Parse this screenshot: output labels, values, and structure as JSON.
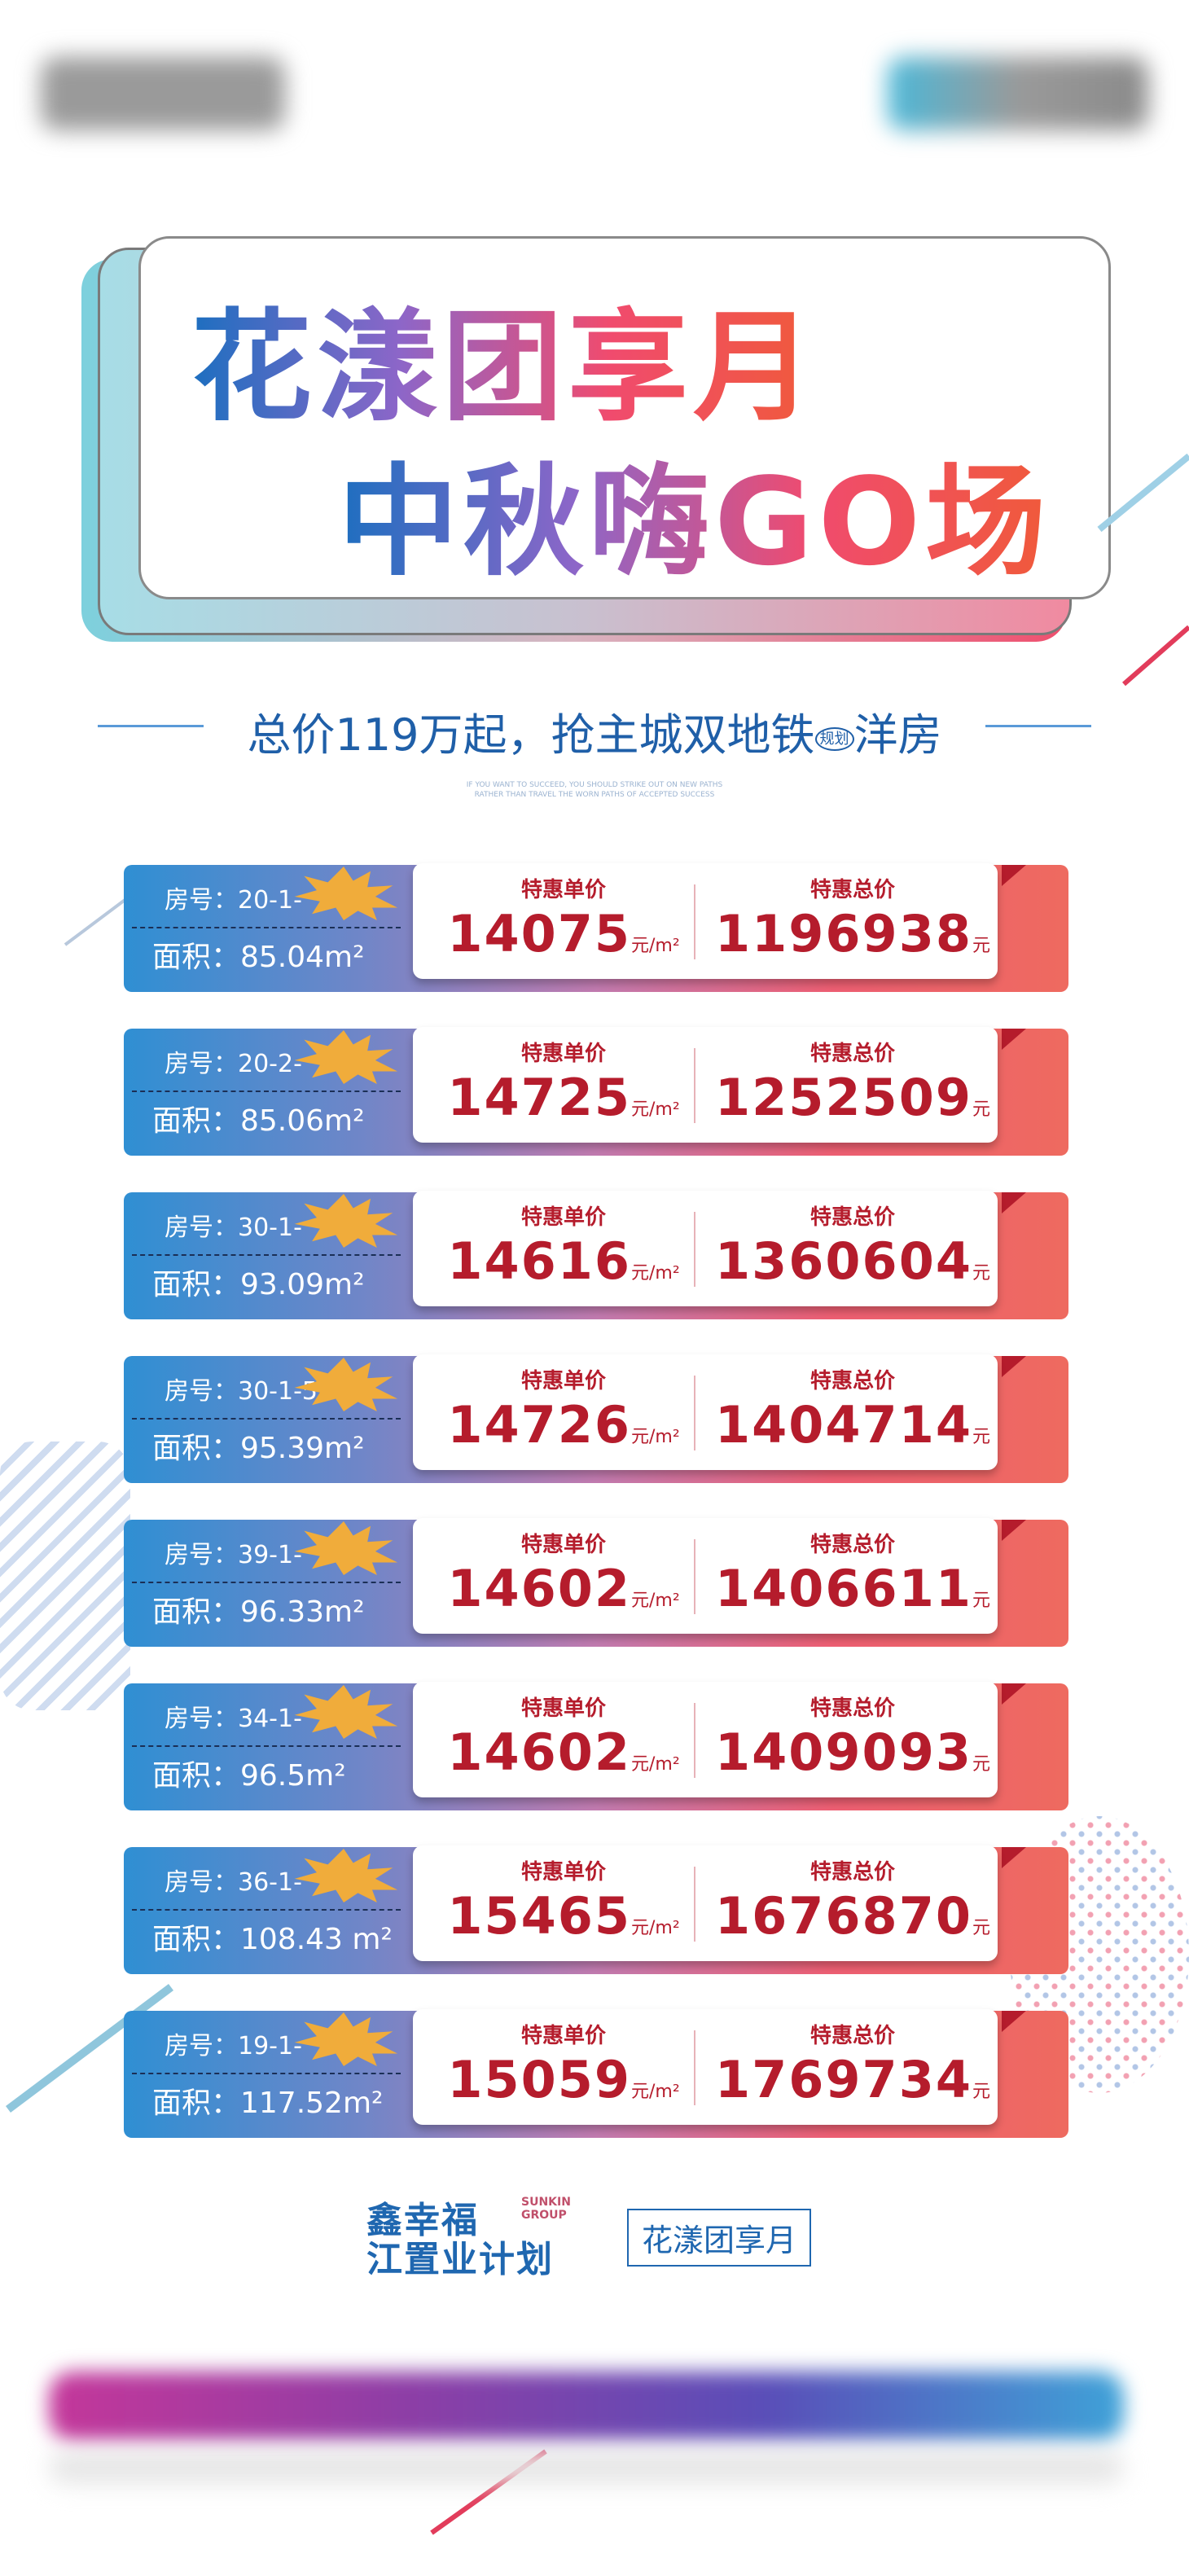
{
  "title": {
    "line1": "花漾团享月",
    "line2": "中秋嗨GO场"
  },
  "subtitle": {
    "prefix": "总价119万起，抢主城双地铁",
    "badge": "规划",
    "suffix": "洋房"
  },
  "fine_print": "IF YOU WANT TO SUCCEED, YOU SHOULD STRIKE OUT ON NEW PATHS RATHER THAN TRAVEL THE WORN PATHS OF ACCEPTED SUCCESS",
  "labels": {
    "unit_price": "特惠单价",
    "total_price": "特惠总价",
    "unit_price_suffix": "元/m²",
    "total_price_suffix": "元"
  },
  "rows": [
    {
      "room": "房号：20-1-",
      "area": "面积：85.04m²",
      "unit_price": "14075",
      "total": "1196938"
    },
    {
      "room": "房号：20-2-",
      "area": "面积：85.06m²",
      "unit_price": "14725",
      "total": "1252509"
    },
    {
      "room": "房号：30-1-",
      "area": "面积：93.09m²",
      "unit_price": "14616",
      "total": "1360604"
    },
    {
      "room": "房号：30-1-5",
      "area": "面积：95.39m²",
      "unit_price": "14726",
      "total": "1404714"
    },
    {
      "room": "房号：39-1-",
      "area": "面积：96.33m²",
      "unit_price": "14602",
      "total": "1406611"
    },
    {
      "room": "房号：34-1-",
      "area": "面积：96.5m²",
      "unit_price": "14602",
      "total": "1409093"
    },
    {
      "room": "房号：36-1-",
      "area": "面积：108.43 m²",
      "unit_price": "15465",
      "total": "1676870"
    },
    {
      "room": "房号：19-1-",
      "area": "面积：117.52m²",
      "unit_price": "15059",
      "total": "1769734"
    }
  ],
  "footer": {
    "logo1_line1": "鑫幸福",
    "logo1_line2": "江置业计划",
    "logo1_en": "SUNKIN GROUP",
    "logo2": "花漾团享月"
  },
  "colors": {
    "accent_red": "#b51c2c",
    "brand_blue": "#1f67b0",
    "gradient_start": "#2f8fd3",
    "gradient_end": "#ee5f73"
  }
}
